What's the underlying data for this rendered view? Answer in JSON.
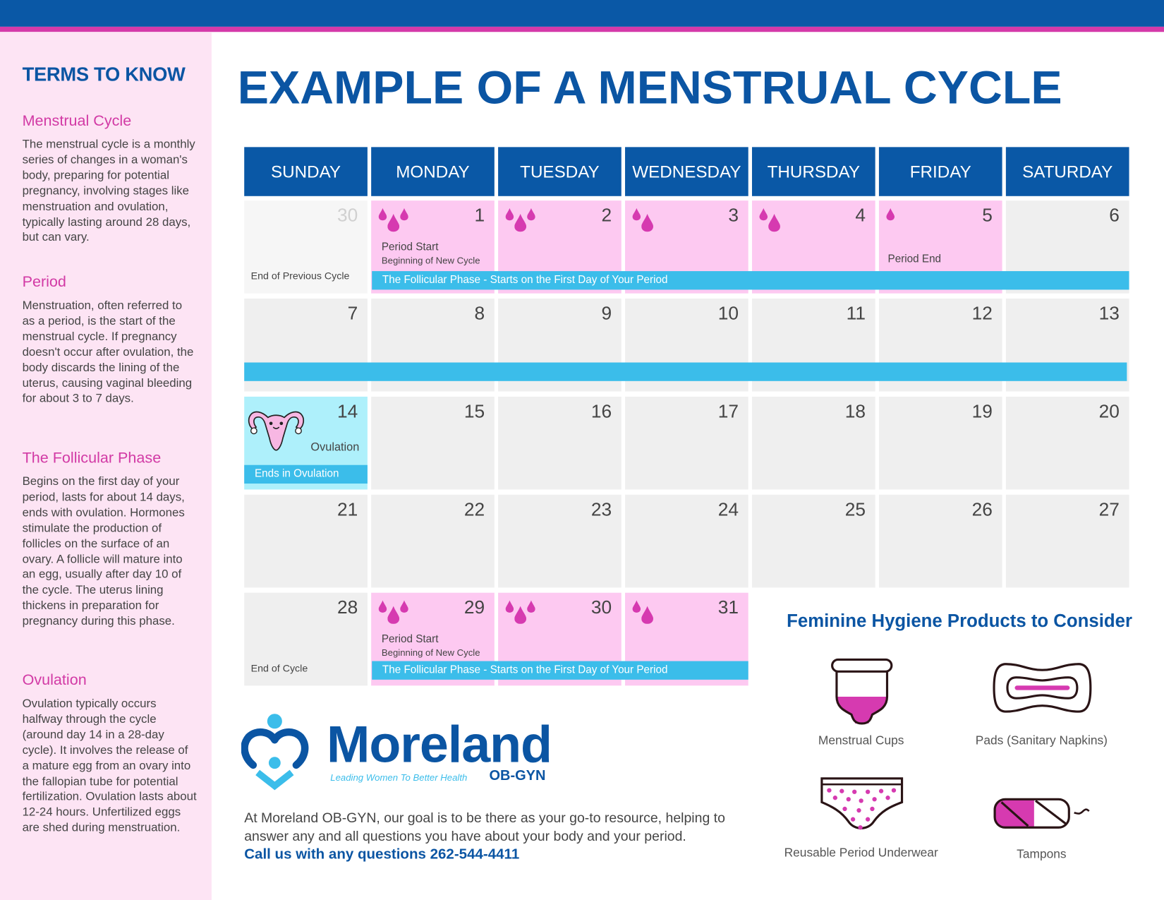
{
  "colors": {
    "brand_blue": "#0a58a6",
    "accent_pink": "#d43aa9",
    "period_cell": "#fdc9f1",
    "ovulation_cell": "#aef0fb",
    "phase_bar": "#3bbdea"
  },
  "sidebar": {
    "title": "TERMS TO KNOW",
    "terms": [
      {
        "heading": "Menstrual Cycle",
        "body": "The menstrual cycle is a monthly series of changes in a woman's body, preparing for potential pregnancy, involving stages like menstruation and ovulation, typically lasting around 28 days, but can vary."
      },
      {
        "heading": "Period",
        "body": "Menstruation, often referred to as a period, is the start of the menstrual cycle. If pregnancy doesn't occur after ovulation, the body discards the lining of the uterus, causing vaginal bleeding for about 3 to 7 days."
      },
      {
        "heading": "The Follicular Phase",
        "body": "Begins on the first day of your period, lasts for about 14 days, ends with ovulation. Hormones stimulate the production of follicles on the surface of an ovary. A follicle will mature into an egg, usually after day 10 of the cycle. The uterus lining thickens in preparation for pregnancy during this phase."
      },
      {
        "heading": "Ovulation",
        "body": "Ovulation typically occurs halfway through the cycle (around day 14 in a 28-day cycle). It involves the release of a mature egg from an ovary into the fallopian tube for potential fertilization. Ovulation lasts about 12-24 hours. Unfertilized eggs are shed during menstruation."
      }
    ]
  },
  "title": "EXAMPLE OF A MENSTRUAL CYCLE",
  "calendar": {
    "weekdays": [
      "SUNDAY",
      "MONDAY",
      "TUESDAY",
      "WEDNESDAY",
      "THURSDAY",
      "FRIDAY",
      "SATURDAY"
    ],
    "weeks": [
      [
        {
          "day": "30",
          "type": "muted",
          "bottom": "End of Previous Cycle"
        },
        {
          "day": "1",
          "type": "period",
          "drops": 3,
          "label": "Period Start",
          "sublabel": "Beginning of New Cycle"
        },
        {
          "day": "2",
          "type": "period",
          "drops": 3
        },
        {
          "day": "3",
          "type": "period",
          "drops": 2
        },
        {
          "day": "4",
          "type": "period",
          "drops": 2
        },
        {
          "day": "5",
          "type": "period",
          "drops": 1,
          "end_label": "Period End"
        },
        {
          "day": "6"
        }
      ],
      [
        {
          "day": "7"
        },
        {
          "day": "8"
        },
        {
          "day": "9"
        },
        {
          "day": "10"
        },
        {
          "day": "11"
        },
        {
          "day": "12"
        },
        {
          "day": "13"
        }
      ],
      [
        {
          "day": "14",
          "type": "ovu",
          "ovulation_label": "Ovulation"
        },
        {
          "day": "15"
        },
        {
          "day": "16"
        },
        {
          "day": "17"
        },
        {
          "day": "18"
        },
        {
          "day": "19"
        },
        {
          "day": "20"
        }
      ],
      [
        {
          "day": "21"
        },
        {
          "day": "22"
        },
        {
          "day": "23"
        },
        {
          "day": "24"
        },
        {
          "day": "25"
        },
        {
          "day": "26"
        },
        {
          "day": "27"
        }
      ],
      [
        {
          "day": "28",
          "bottom": "End of Cycle"
        },
        {
          "day": "29",
          "type": "period",
          "drops": 3,
          "label": "Period Start",
          "sublabel": "Beginning of New Cycle"
        },
        {
          "day": "30",
          "type": "period",
          "drops": 3
        },
        {
          "day": "31",
          "type": "period",
          "drops": 2
        }
      ]
    ],
    "bars": [
      {
        "week": 0,
        "from_col": 1,
        "to_col": 6,
        "text": "The Follicular Phase - Starts on the First Day of Your Period"
      },
      {
        "week": 1,
        "from_col": 0,
        "to_col": 6,
        "text": ""
      },
      {
        "week": 2,
        "from_col": 0,
        "to_col": 0,
        "text": "Ends in Ovulation"
      },
      {
        "week": 4,
        "from_col": 1,
        "to_col": 3,
        "text": "The Follicular Phase - Starts on the First Day of Your Period"
      }
    ]
  },
  "logo": {
    "name": "Moreland",
    "tagline": "Leading Women To Better Health",
    "suffix": "OB-GYN"
  },
  "blurb": {
    "text": "At Moreland OB-GYN, our goal is to be there as your go-to resource, helping to answer any and all questions  you have about your body and your period.",
    "phone_line": "Call us with any questions 262-544-4411"
  },
  "products": {
    "heading": "Feminine Hygiene Products to Consider",
    "items": [
      {
        "icon": "menstrual-cup-icon",
        "label": "Menstrual Cups"
      },
      {
        "icon": "pad-icon",
        "label": "Pads (Sanitary Napkins)"
      },
      {
        "icon": "period-underwear-icon",
        "label": "Reusable Period Underwear"
      },
      {
        "icon": "tampon-icon",
        "label": "Tampons"
      }
    ]
  }
}
